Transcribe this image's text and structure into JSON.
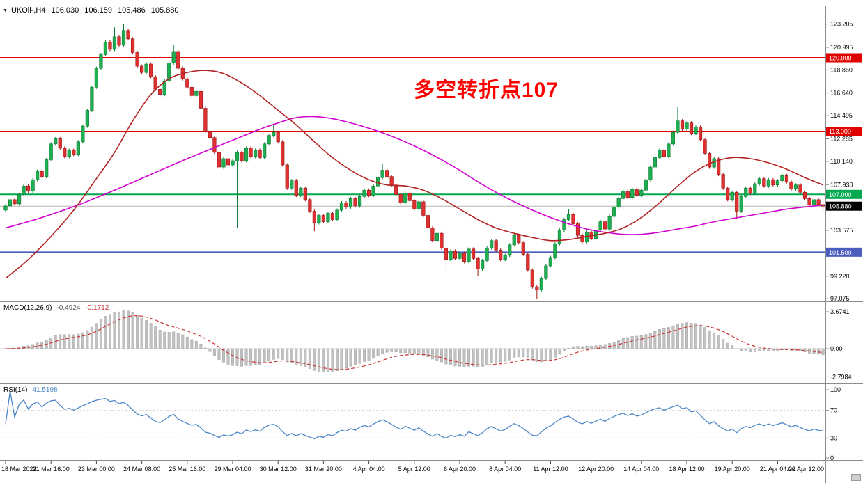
{
  "header": {
    "symbol_period": "UKOil-,H4",
    "open": "106.030",
    "high": "106.159",
    "low": "105.486",
    "close": "105.880"
  },
  "annotation": {
    "text": "多空转折点107",
    "color": "#fe0000"
  },
  "panels": {
    "macd": {
      "label": "MACD(12,26,9)",
      "value_main": "-0.4924",
      "value_signal": "-0.1712",
      "axis": [
        "3.6741",
        "0.00",
        "-2.7984"
      ]
    },
    "rsi": {
      "label": "RSI(14)",
      "value": "41.5198",
      "axis": [
        "100",
        "70",
        "30",
        "0"
      ],
      "levels": [
        70,
        30
      ]
    }
  },
  "chart_data": {
    "type": "candlestick",
    "symbol": "UKOil-",
    "timeframe": "H4",
    "title": "UKOil-,H4 106.030 106.159 105.486 105.880",
    "price_axis_labels": [
      123.205,
      120.995,
      118.85,
      116.64,
      114.495,
      112.285,
      110.14,
      107.93,
      105.785,
      103.575,
      101.365,
      99.22,
      97.075
    ],
    "x_tick_labels": [
      "18 Mar 2022",
      "21 Mar 16:00",
      "23 Mar 00:00",
      "24 Mar 08:00",
      "25 Mar 16:00",
      "29 Mar 04:00",
      "30 Mar 12:00",
      "31 Mar 20:00",
      "4 Apr 04:00",
      "5 Apr 12:00",
      "6 Apr 20:00",
      "8 Apr 04:00",
      "11 Apr 12:00",
      "12 Apr 20:00",
      "14 Apr 04:00",
      "18 Apr 12:00",
      "19 Apr 20:00",
      "21 Apr 04:00",
      "22 Apr 12:00"
    ],
    "bars_per_tick": 10,
    "first_open": 105.5,
    "closes": [
      105.9,
      106.5,
      106.1,
      107.0,
      107.8,
      107.3,
      108.4,
      109.2,
      108.7,
      110.3,
      111.8,
      112.3,
      111.4,
      110.6,
      111.2,
      110.8,
      112.0,
      113.5,
      115.0,
      117.2,
      119.0,
      120.3,
      121.5,
      120.8,
      122.0,
      121.2,
      122.6,
      121.8,
      120.5,
      119.2,
      118.6,
      119.4,
      118.2,
      117.0,
      116.5,
      117.8,
      119.5,
      120.6,
      119.0,
      118.0,
      117.2,
      116.4,
      116.8,
      115.2,
      113.0,
      112.4,
      111.0,
      109.6,
      110.4,
      109.8,
      110.2,
      111.0,
      110.2,
      111.4,
      110.6,
      111.2,
      110.5,
      111.8,
      112.6,
      112.9,
      112.0,
      109.8,
      107.6,
      108.3,
      106.9,
      107.6,
      106.5,
      105.4,
      104.3,
      105.0,
      104.4,
      105.2,
      104.6,
      105.5,
      106.2,
      105.8,
      106.6,
      105.9,
      106.8,
      107.4,
      106.9,
      107.8,
      108.6,
      109.3,
      108.7,
      107.9,
      107.0,
      106.2,
      107.1,
      106.4,
      105.6,
      106.3,
      105.0,
      103.8,
      102.6,
      103.3,
      101.9,
      100.8,
      101.6,
      100.9,
      101.4,
      100.6,
      101.8,
      100.9,
      99.9,
      100.7,
      101.9,
      102.6,
      101.7,
      100.8,
      101.2,
      102.2,
      103.1,
      102.4,
      101.3,
      99.8,
      98.2,
      97.9,
      99.0,
      100.2,
      101.0,
      102.3,
      103.6,
      104.6,
      105.1,
      104.2,
      103.1,
      102.5,
      103.4,
      102.8,
      103.6,
      104.4,
      103.7,
      104.9,
      105.8,
      106.6,
      107.3,
      106.7,
      107.5,
      106.9,
      107.4,
      108.4,
      109.6,
      110.5,
      111.2,
      110.6,
      111.8,
      112.9,
      114.0,
      113.2,
      113.8,
      112.8,
      113.4,
      112.2,
      110.9,
      109.6,
      110.4,
      108.9,
      107.6,
      106.5,
      107.2,
      105.4,
      106.8,
      107.6,
      107.1,
      108.0,
      108.5,
      107.8,
      108.4,
      107.9,
      108.3,
      108.8,
      108.2,
      107.5,
      107.9,
      107.2,
      106.6,
      106.0,
      106.5,
      106.03,
      105.88
    ],
    "wick_overrides": [
      {
        "i": 24,
        "high": 122.9
      },
      {
        "i": 26,
        "high": 123.18
      },
      {
        "i": 37,
        "high": 121.2
      },
      {
        "i": 51,
        "low": 103.8
      },
      {
        "i": 59,
        "high": 113.6
      },
      {
        "i": 68,
        "low": 103.5
      },
      {
        "i": 83,
        "high": 109.9
      },
      {
        "i": 97,
        "low": 99.9
      },
      {
        "i": 104,
        "low": 99.2
      },
      {
        "i": 117,
        "low": 97.08
      },
      {
        "i": 124,
        "high": 105.6
      },
      {
        "i": 148,
        "high": 115.3
      },
      {
        "i": 161,
        "low": 104.7
      },
      {
        "i": 180,
        "high": 106.159,
        "low": 105.486
      }
    ],
    "colors": {
      "bull": "#1fae50",
      "bull_border": "#0d7a35",
      "bear": "#e03131",
      "bear_border": "#9c1414",
      "ma_fast": "#b22222",
      "ma_slow": "#d000d0",
      "macd_hist": "#c2c2c2",
      "macd_signal": "#cc3333",
      "rsi_line": "#4a86c8",
      "level_red": "#e00000",
      "level_green": "#00a84f",
      "level_blue": "#4a5dbe",
      "current_tag": "#000000"
    },
    "hlines": [
      {
        "price": 120.0,
        "label": "120.000",
        "color": "#e00000",
        "width": 2
      },
      {
        "price": 113.0,
        "label": "113.000",
        "color": "#e00000",
        "width": 1.4
      },
      {
        "price": 107.0,
        "label": "107.000",
        "color": "#00a84f",
        "width": 2
      },
      {
        "price": 101.5,
        "label": "101.500",
        "color": "#4a5dbe",
        "width": 2
      }
    ],
    "current_price": {
      "value": 105.88,
      "label": "105.880"
    },
    "ma_fast_points": [
      [
        0,
        99.0
      ],
      [
        5,
        100.8
      ],
      [
        10,
        103.0
      ],
      [
        15,
        105.5
      ],
      [
        20,
        108.5
      ],
      [
        24,
        111.0
      ],
      [
        28,
        114.0
      ],
      [
        32,
        116.5
      ],
      [
        36,
        118.0
      ],
      [
        40,
        118.6
      ],
      [
        44,
        118.8
      ],
      [
        48,
        118.5
      ],
      [
        52,
        117.6
      ],
      [
        56,
        116.4
      ],
      [
        60,
        115.0
      ],
      [
        64,
        113.6
      ],
      [
        68,
        112.0
      ],
      [
        72,
        110.5
      ],
      [
        76,
        109.3
      ],
      [
        80,
        108.4
      ],
      [
        84,
        107.9
      ],
      [
        88,
        107.8
      ],
      [
        92,
        107.4
      ],
      [
        96,
        106.6
      ],
      [
        100,
        105.6
      ],
      [
        104,
        104.6
      ],
      [
        108,
        103.8
      ],
      [
        112,
        103.3
      ],
      [
        116,
        102.9
      ],
      [
        120,
        102.6
      ],
      [
        124,
        102.7
      ],
      [
        128,
        103.0
      ],
      [
        132,
        103.3
      ],
      [
        136,
        103.8
      ],
      [
        140,
        104.8
      ],
      [
        144,
        106.2
      ],
      [
        148,
        107.8
      ],
      [
        152,
        109.2
      ],
      [
        156,
        110.1
      ],
      [
        160,
        110.5
      ],
      [
        164,
        110.4
      ],
      [
        168,
        110.0
      ],
      [
        172,
        109.4
      ],
      [
        176,
        108.6
      ],
      [
        180,
        107.9
      ]
    ],
    "ma_slow_points": [
      [
        0,
        103.8
      ],
      [
        8,
        104.8
      ],
      [
        16,
        106.0
      ],
      [
        24,
        107.4
      ],
      [
        32,
        108.9
      ],
      [
        40,
        110.4
      ],
      [
        48,
        111.8
      ],
      [
        52,
        112.5
      ],
      [
        56,
        113.2
      ],
      [
        60,
        113.8
      ],
      [
        64,
        114.3
      ],
      [
        68,
        114.4
      ],
      [
        72,
        114.2
      ],
      [
        76,
        113.8
      ],
      [
        80,
        113.3
      ],
      [
        84,
        112.7
      ],
      [
        88,
        112.0
      ],
      [
        92,
        111.2
      ],
      [
        96,
        110.3
      ],
      [
        100,
        109.3
      ],
      [
        104,
        108.2
      ],
      [
        108,
        107.2
      ],
      [
        112,
        106.3
      ],
      [
        116,
        105.5
      ],
      [
        120,
        104.8
      ],
      [
        124,
        104.2
      ],
      [
        128,
        103.7
      ],
      [
        132,
        103.4
      ],
      [
        136,
        103.2
      ],
      [
        140,
        103.2
      ],
      [
        144,
        103.4
      ],
      [
        148,
        103.7
      ],
      [
        152,
        104.0
      ],
      [
        156,
        104.4
      ],
      [
        160,
        104.7
      ],
      [
        164,
        105.0
      ],
      [
        168,
        105.3
      ],
      [
        172,
        105.6
      ],
      [
        176,
        105.8
      ],
      [
        180,
        106.0
      ]
    ],
    "macd_params": [
      12,
      26,
      9
    ],
    "rsi_period": 14,
    "macd_axis_range": [
      3.6741,
      -2.7984
    ],
    "rsi_axis_range": [
      0,
      100
    ]
  }
}
